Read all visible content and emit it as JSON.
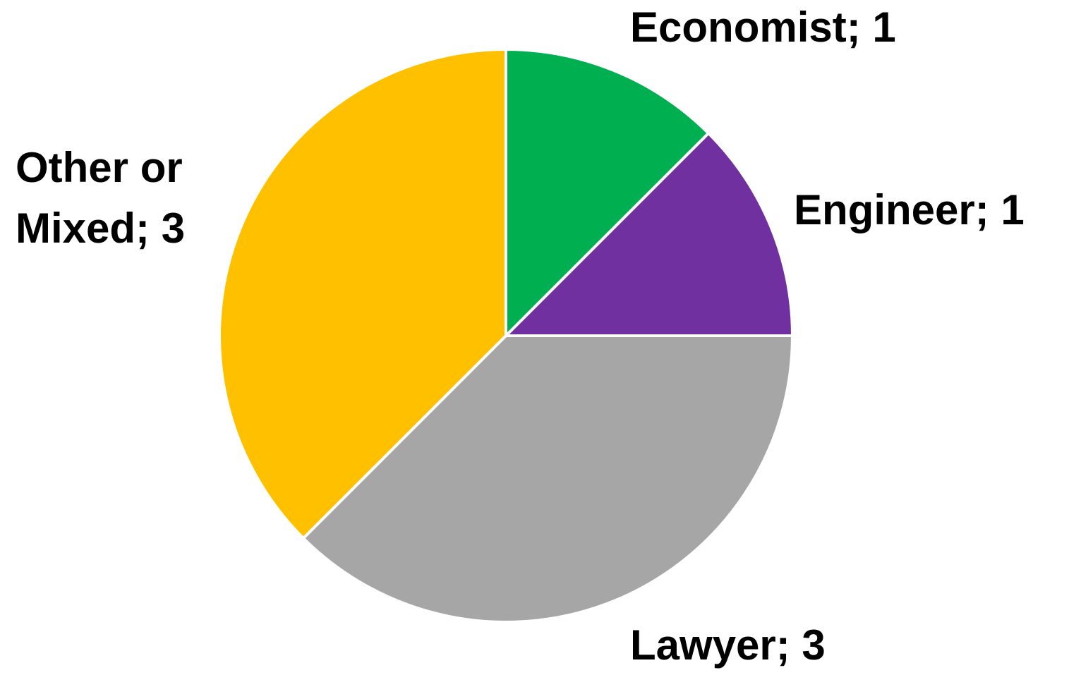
{
  "chart_data": {
    "type": "pie",
    "values": [
      1,
      1,
      3,
      3
    ],
    "value_labels": [
      "Economist; 1",
      "Engineer; 1",
      "Lawyer; 3",
      "Other or Mixed; 3"
    ],
    "colors": [
      "#00b050",
      "#7030a0",
      "#a6a6a6",
      "#ffc000"
    ]
  }
}
